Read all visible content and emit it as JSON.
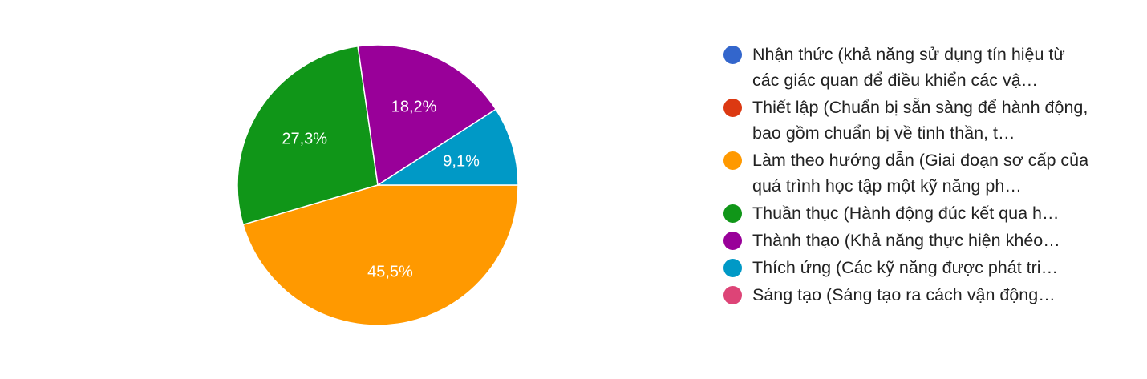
{
  "chart_data": {
    "type": "pie",
    "slices": [
      {
        "label": "Nhận thức (khả năng sử dụng tín hiệu từ các giác quan để điều khiển các vật thể...",
        "value": 0,
        "color": "#3366cc"
      },
      {
        "label": "Thiết lập (Chuẩn bị sẵn sàng để hành động, bao gồm chuẩn bị về tinh thần, thể chất...",
        "value": 0,
        "color": "#dc3912"
      },
      {
        "label": "Làm theo hướng dẫn (Giai đoạn sơ cấp của quá trình học tập một kỹ năng phức tạp...",
        "value": 45.5,
        "color": "#ff9900",
        "display": "45,5%"
      },
      {
        "label": "Thuần thục (Hành động đúc kết qua học tập...",
        "value": 27.3,
        "color": "#109618",
        "display": "27,3%"
      },
      {
        "label": "Thành thạo (Khả năng thực hiện khéo léo...",
        "value": 18.2,
        "color": "#990099",
        "display": "18,2%"
      },
      {
        "label": "Thích ứng (Các kỹ năng được phát triển tốt...",
        "value": 9.1,
        "color": "#0099c6",
        "display": "9,1%"
      },
      {
        "label": "Sáng tạo (Sáng tạo ra cách vận động mới...",
        "value": 0,
        "color": "#dd4477"
      }
    ],
    "legend_position": "right",
    "start_angle_deg": 90,
    "direction": "clockwise"
  },
  "legend": [
    {
      "text": "Nhận thức (khả năng sử dụng tín hiệu từ các giác quan để điều khiển các vậ…",
      "color": "#3366cc",
      "lines": 2
    },
    {
      "text": "Thiết lập (Chuẩn bị sẵn sàng để hành động, bao gồm chuẩn bị về tinh thần, t…",
      "color": "#dc3912",
      "lines": 2
    },
    {
      "text": "Làm theo hướng dẫn (Giai đoạn sơ cấp của quá trình học tập một kỹ năng ph…",
      "color": "#ff9900",
      "lines": 2
    },
    {
      "text": "Thuần thục (Hành động đúc kết qua h…",
      "color": "#109618",
      "lines": 1
    },
    {
      "text": "Thành thạo (Khả năng thực hiện khéo…",
      "color": "#990099",
      "lines": 1
    },
    {
      "text": "Thích ứng (Các kỹ năng được phát tri…",
      "color": "#0099c6",
      "lines": 1
    },
    {
      "text": "Sáng tạo (Sáng tạo ra cách vận động…",
      "color": "#dd4477",
      "lines": 1
    }
  ]
}
